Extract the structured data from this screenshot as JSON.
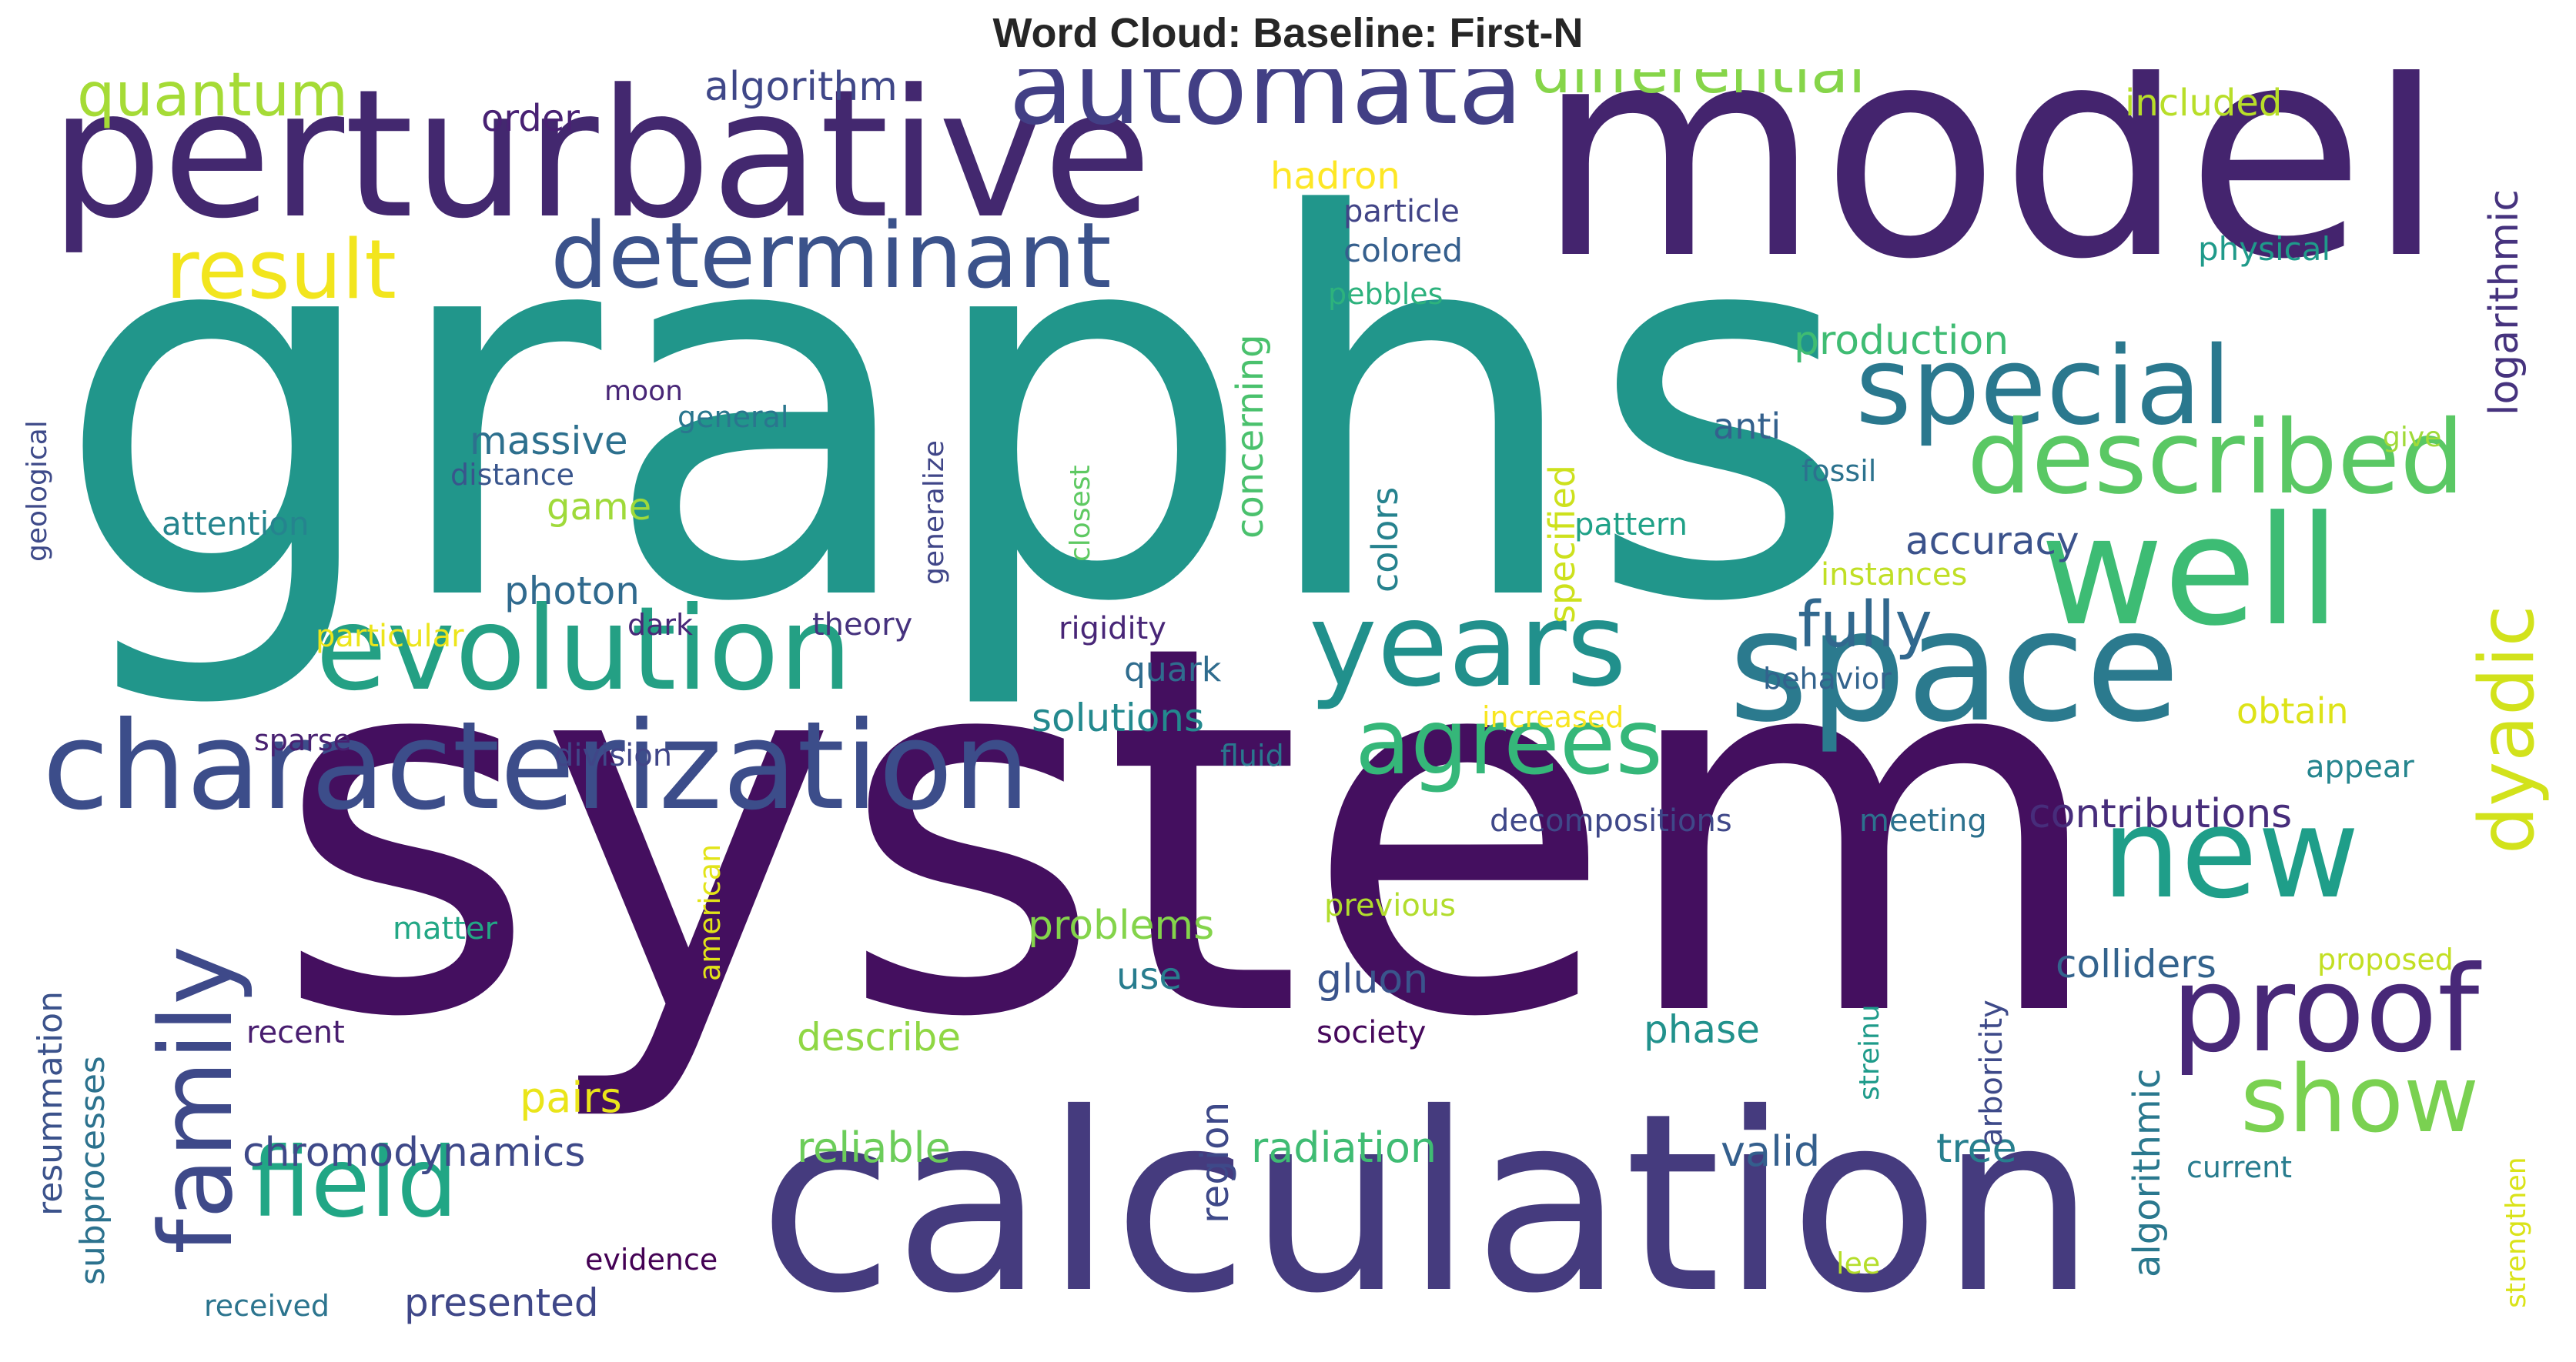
{
  "chart_data": {
    "type": "wordcloud",
    "title": "Word Cloud: Baseline: First-N",
    "words": [
      {
        "text": "system",
        "color": "#440f5f"
      },
      {
        "text": "graphs",
        "color": "#21968b"
      },
      {
        "text": "model",
        "color": "#44246e"
      },
      {
        "text": "calculation",
        "color": "#453b7e"
      },
      {
        "text": "perturbative",
        "color": "#43286f"
      },
      {
        "text": "characterization",
        "color": "#3c4d8a"
      },
      {
        "text": "space",
        "color": "#2b7a8e"
      },
      {
        "text": "evolution",
        "color": "#24a084"
      },
      {
        "text": "well",
        "color": "#3dbc74"
      },
      {
        "text": "automata",
        "color": "#423f85"
      },
      {
        "text": "determinant",
        "color": "#3b528b"
      },
      {
        "text": "years",
        "color": "#21908c"
      },
      {
        "text": "special",
        "color": "#2a788e"
      },
      {
        "text": "described",
        "color": "#5ac864"
      },
      {
        "text": "new",
        "color": "#1f9e89"
      },
      {
        "text": "proof",
        "color": "#482878"
      },
      {
        "text": "family",
        "color": "#3e4989"
      },
      {
        "text": "field",
        "color": "#21a685"
      },
      {
        "text": "agrees",
        "color": "#35b779"
      },
      {
        "text": "dyadic",
        "color": "#d2e21b"
      },
      {
        "text": "show",
        "color": "#7ad151"
      },
      {
        "text": "result",
        "color": "#f2e51d"
      },
      {
        "text": "quantum",
        "color": "#a5db36"
      },
      {
        "text": "differential",
        "color": "#86d549"
      },
      {
        "text": "fully",
        "color": "#31688e"
      },
      {
        "text": "logarithmic",
        "color": "#46337e"
      },
      {
        "text": "algorithm",
        "color": "#3f4788"
      },
      {
        "text": "order",
        "color": "#482173"
      },
      {
        "text": "included",
        "color": "#b8de29"
      },
      {
        "text": "hadron",
        "color": "#fde725"
      },
      {
        "text": "particle",
        "color": "#414487"
      },
      {
        "text": "colored",
        "color": "#355f8d"
      },
      {
        "text": "pebbles",
        "color": "#2db27d"
      },
      {
        "text": "physical",
        "color": "#1f9a8a"
      },
      {
        "text": "production",
        "color": "#3fbc73"
      },
      {
        "text": "concerning",
        "color": "#4ac16d"
      },
      {
        "text": "massive",
        "color": "#2d708e"
      },
      {
        "text": "anti",
        "color": "#34618d"
      },
      {
        "text": "game",
        "color": "#9fda3a"
      },
      {
        "text": "photon",
        "color": "#306a8e"
      },
      {
        "text": "accuracy",
        "color": "#3b528b"
      },
      {
        "text": "colors",
        "color": "#26828e"
      },
      {
        "text": "specified",
        "color": "#cde11d"
      },
      {
        "text": "quark",
        "color": "#2f6c8e"
      },
      {
        "text": "solutions",
        "color": "#23898e"
      },
      {
        "text": "obtain",
        "color": "#dde318"
      },
      {
        "text": "contributions",
        "color": "#472d7b"
      },
      {
        "text": "colliders",
        "color": "#33638d"
      },
      {
        "text": "problems",
        "color": "#84d44b"
      },
      {
        "text": "use",
        "color": "#287d8e"
      },
      {
        "text": "gluon",
        "color": "#3a548c"
      },
      {
        "text": "describe",
        "color": "#8fd744"
      },
      {
        "text": "phase",
        "color": "#21918c"
      },
      {
        "text": "pairs",
        "color": "#eae51a"
      },
      {
        "text": "chromodynamics",
        "color": "#3e4989"
      },
      {
        "text": "reliable",
        "color": "#6ccd5a"
      },
      {
        "text": "radiation",
        "color": "#3fbc73"
      },
      {
        "text": "valid",
        "color": "#345f8d"
      },
      {
        "text": "tree",
        "color": "#277f8e"
      },
      {
        "text": "region",
        "color": "#3e4989"
      },
      {
        "text": "algorithmic",
        "color": "#2a788e"
      },
      {
        "text": "presented",
        "color": "#3f4788"
      },
      {
        "text": "resummation",
        "color": "#3b528b"
      },
      {
        "text": "subprocesses",
        "color": "#2c728e"
      },
      {
        "text": "geological",
        "color": "#3e4a89"
      },
      {
        "text": "attention",
        "color": "#25848e"
      },
      {
        "text": "moon",
        "color": "#482677"
      },
      {
        "text": "general",
        "color": "#2a768e"
      },
      {
        "text": "distance",
        "color": "#39558c"
      },
      {
        "text": "generalize",
        "color": "#404688"
      },
      {
        "text": "closest",
        "color": "#5ec962"
      },
      {
        "text": "fossil",
        "color": "#2c728e"
      },
      {
        "text": "give",
        "color": "#a0da39"
      },
      {
        "text": "pattern",
        "color": "#1fa187"
      },
      {
        "text": "instances",
        "color": "#c0df25"
      },
      {
        "text": "particular",
        "color": "#ece51b"
      },
      {
        "text": "dark",
        "color": "#482878"
      },
      {
        "text": "theory",
        "color": "#46327e"
      },
      {
        "text": "rigidity",
        "color": "#482677"
      },
      {
        "text": "behavior",
        "color": "#33638d"
      },
      {
        "text": "increased",
        "color": "#f8e621"
      },
      {
        "text": "appear",
        "color": "#25858e"
      },
      {
        "text": "sparse",
        "color": "#482071"
      },
      {
        "text": "division",
        "color": "#404688"
      },
      {
        "text": "fluid",
        "color": "#2a778e"
      },
      {
        "text": "decompositions",
        "color": "#3f4889"
      },
      {
        "text": "meeting",
        "color": "#2c718e"
      },
      {
        "text": "american",
        "color": "#e2e418"
      },
      {
        "text": "previous",
        "color": "#b2dd2d"
      },
      {
        "text": "proposed",
        "color": "#c2df23"
      },
      {
        "text": "matter",
        "color": "#22a785"
      },
      {
        "text": "streinu",
        "color": "#1e9b8a"
      },
      {
        "text": "arboricity",
        "color": "#3e4a89"
      },
      {
        "text": "recent",
        "color": "#481d6f"
      },
      {
        "text": "society",
        "color": "#46085c"
      },
      {
        "text": "current",
        "color": "#287c8e"
      },
      {
        "text": "strengthen",
        "color": "#dae319"
      },
      {
        "text": "evidence",
        "color": "#440154"
      },
      {
        "text": "lee",
        "color": "#b5de2b"
      },
      {
        "text": "received",
        "color": "#2b748e"
      }
    ]
  }
}
